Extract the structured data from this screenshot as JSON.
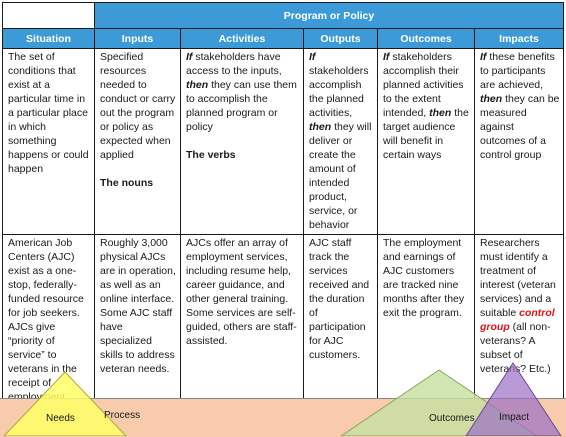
{
  "super_header": "Program or Policy",
  "headers": [
    "Situation",
    "Inputs",
    "Activities",
    "Outputs",
    "Outcomes",
    "Impacts"
  ],
  "definitions": {
    "situation": "The set of conditions that exist at a particular time in a particular place in which something happens or could happen",
    "inputs": "Specified resources needed to conduct or carry out the program or policy as expected when applied",
    "inputs_note": "The nouns",
    "activities_if": "If",
    "activities_a": " stakeholders have access to the inputs, ",
    "activities_then": "then",
    "activities_b": " they can use them to accomplish the planned program or policy",
    "activities_note": "The verbs",
    "outputs_if": "If",
    "outputs_a": " stakeholders accomplish the planned activities, ",
    "outputs_then": "then",
    "outputs_b": " they will deliver or create the amount of intended product, service, or behavior",
    "outcomes_if": "If",
    "outcomes_a": " stakeholders accomplish their planned activities to the extent intended, ",
    "outcomes_then": "then",
    "outcomes_b": " the target audience will benefit in certain ways",
    "impacts_if": "If",
    "impacts_a": " these benefits to participants are achieved, ",
    "impacts_then": "then",
    "impacts_b": " they can be measured against outcomes of a control group"
  },
  "examples": {
    "situation": "American Job Centers (AJC) exist as a one-stop, federally-funded resource for job seekers. AJCs give “priority of service” to veterans in the receipt of employment services.",
    "inputs": "Roughly 3,000 physical AJCs are in operation, as well as an online interface. Some AJC staff have specialized skills to address veteran needs.",
    "activities": "AJCs offer an array of employment services, including resume help, career guidance, and other general training. Some services are self-guided, others are staff-assisted.",
    "outputs": "AJC staff track the services received and the duration of participation for AJC customers.",
    "outcomes": "The employment and earnings of AJC customers are tracked nine months after they exit the program.",
    "impacts_a": "Researchers must identify a treatment of interest (veteran services) and a suitable ",
    "impacts_red": "control group",
    "impacts_b": " (all non-veterans? A subset of veterans? Etc.)"
  },
  "bottom_labels": {
    "needs": "Needs",
    "process": "Process",
    "outcomes": "Outcomes",
    "impact": "Impact"
  },
  "colors": {
    "header_blue": "#3d9ad8",
    "process_bar": "#f8cbad",
    "needs_triangle": "#ffff66",
    "outcomes_triangle": "#c6e0a0",
    "impact_triangle": "#9b6fc4",
    "control_group_red": "#e0141e"
  }
}
